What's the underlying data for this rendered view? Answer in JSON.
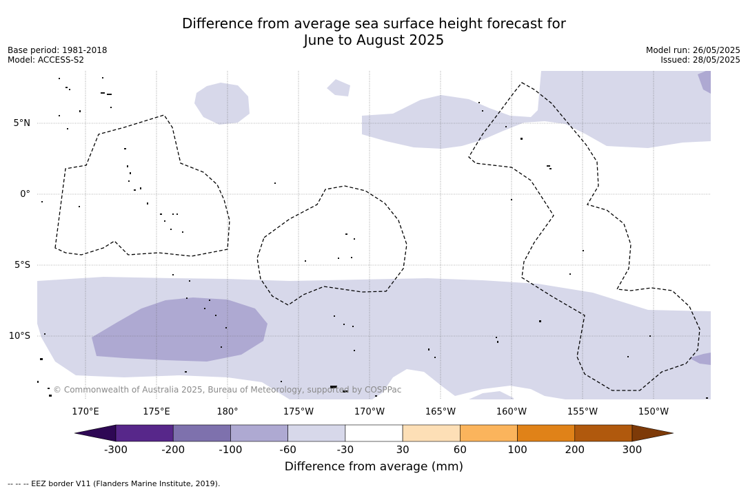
{
  "title_line1": "Difference from average sea surface height forecast for",
  "title_line2": "June to August 2025",
  "base_period": "Base period: 1981-2018",
  "model": "Model: ACCESS-S2",
  "model_run": "Model run: 26/05/2025",
  "issued": "Issued: 28/05/2025",
  "copyright": "© Commonwealth of Australia 2025, Bureau of Meteorology, supported by COSPPac",
  "lat_labels": [
    "5°N",
    "0°",
    "5°S",
    "10°S"
  ],
  "lon_labels": [
    "170°E",
    "175°E",
    "180°",
    "175°W",
    "170°W",
    "165°W",
    "160°W",
    "155°W",
    "150°W"
  ],
  "colorbar": {
    "labels": [
      "-300",
      "-200",
      "-100",
      "-60",
      "-30",
      "30",
      "60",
      "100",
      "200",
      "300"
    ],
    "colors": [
      "#2e0854",
      "#57278a",
      "#7e71ad",
      "#aea9d2",
      "#d7d8ea",
      "#ffffff",
      "#fddfb6",
      "#fbb45c",
      "#e08218",
      "#b0590d",
      "#7d3a08"
    ],
    "title": "Difference from average (mm)"
  },
  "legend_note": "--  --  -- EEZ border V11 (Flanders Marine Institute, 2019)."
}
